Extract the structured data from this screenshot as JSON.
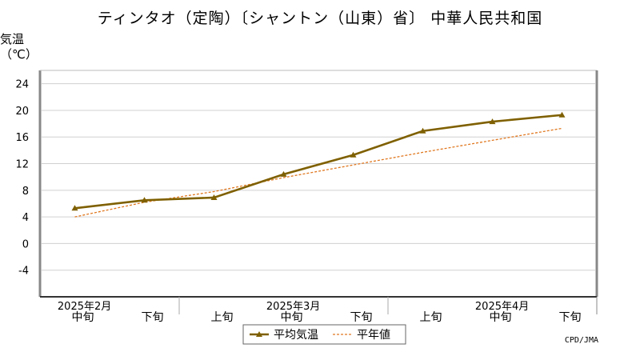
{
  "chart_data": {
    "type": "line",
    "title": "ティンタオ（定陶）〔シャントン（山東）省〕 中華人民共和国",
    "ylabel": "気温",
    "yunit": "（℃）",
    "ylim": [
      -8,
      26
    ],
    "yticks": [
      -4,
      0,
      4,
      8,
      12,
      16,
      20,
      24
    ],
    "grid": true,
    "legend_position": "bottom-center",
    "x": [
      "2025年2月中旬",
      "2025年2月下旬",
      "2025年3月上旬",
      "2025年3月中旬",
      "2025年3月下旬",
      "2025年4月上旬",
      "2025年4月中旬",
      "2025年4月下旬"
    ],
    "x_dekad_labels": [
      "中旬",
      "下旬",
      "上旬",
      "中旬",
      "下旬",
      "上旬",
      "中旬",
      "下旬"
    ],
    "x_month_labels": [
      {
        "label": "2025年2月",
        "at": 0.3
      },
      {
        "label": "2025年3月",
        "at": 3.3
      },
      {
        "label": "2025年4月",
        "at": 6.3
      }
    ],
    "x_month_separators": [
      1.5,
      4.5
    ],
    "series": [
      {
        "name": "平均気温",
        "style": "solid-marker",
        "color": "#7f6000",
        "values": [
          5.3,
          6.5,
          6.9,
          10.4,
          13.3,
          16.9,
          18.3,
          19.3
        ]
      },
      {
        "name": "平年値",
        "style": "dashed",
        "color": "#e07820",
        "values": [
          4.0,
          6.2,
          7.8,
          9.9,
          11.8,
          13.7,
          15.5,
          17.3
        ]
      }
    ]
  },
  "credit": "CPD/JMA"
}
